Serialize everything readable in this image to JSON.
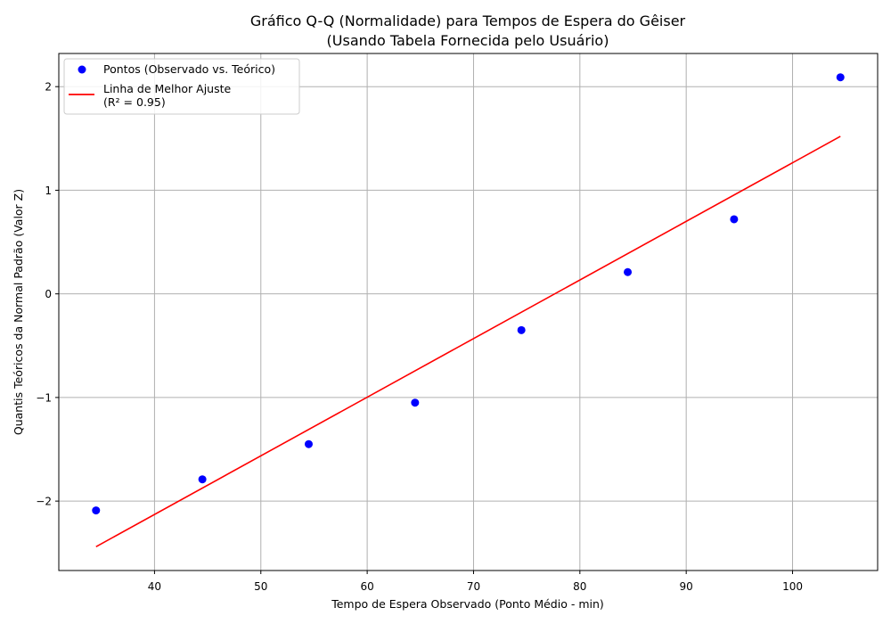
{
  "chart_data": {
    "type": "scatter",
    "title": "Gráfico Q-Q (Normalidade) para Tempos de Espera do Gêiser",
    "subtitle": "(Usando Tabela Fornecida pelo Usuário)",
    "xlabel": "Tempo de Espera Observado (Ponto Médio - min)",
    "ylabel": "Quantis Teóricos da Normal Padrão (Valor Z)",
    "xlim": [
      31,
      108
    ],
    "ylim": [
      -2.67,
      2.32
    ],
    "xticks": [
      40,
      50,
      60,
      70,
      80,
      90,
      100
    ],
    "xtick_labels": [
      "40",
      "50",
      "60",
      "70",
      "80",
      "90",
      "100"
    ],
    "yticks": [
      -2,
      -1,
      0,
      1,
      2
    ],
    "ytick_labels": [
      "−2",
      "−1",
      "0",
      "1",
      "2"
    ],
    "grid": true,
    "legend_position": "top-left",
    "series": [
      {
        "name": "Pontos (Observado vs. Teórico)",
        "kind": "scatter",
        "color": "#0000ff",
        "x": [
          34.5,
          44.5,
          54.5,
          64.5,
          74.5,
          84.5,
          94.5,
          104.5
        ],
        "y": [
          -2.09,
          -1.79,
          -1.45,
          -1.05,
          -0.35,
          0.21,
          0.72,
          2.09
        ]
      },
      {
        "name": "Linha de Melhor Ajuste",
        "name_line2": "(R² = 0.95)",
        "kind": "line",
        "color": "#ff0000",
        "x": [
          34.5,
          104.5
        ],
        "y": [
          -2.44,
          1.52
        ]
      }
    ]
  }
}
